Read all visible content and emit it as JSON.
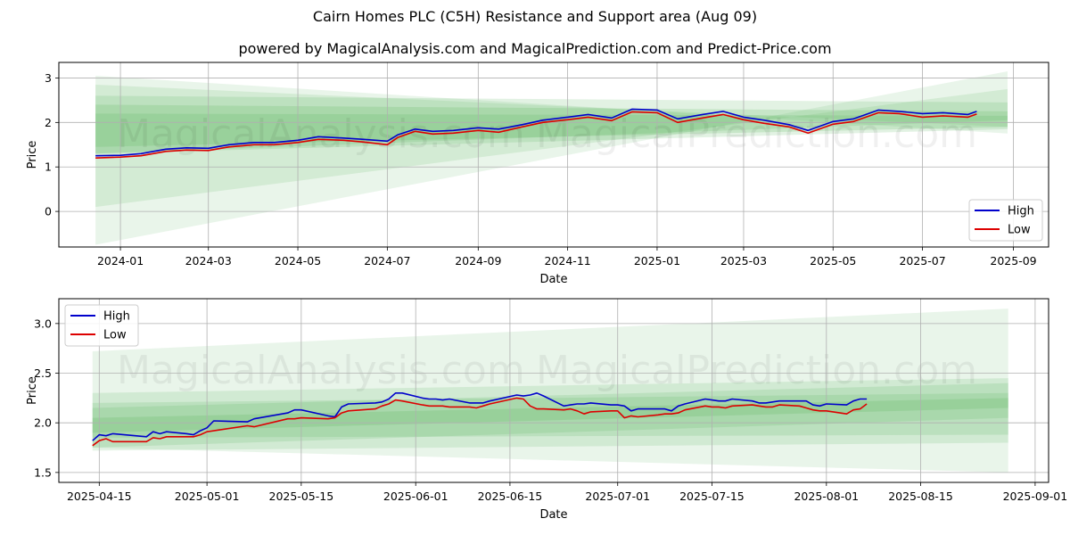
{
  "header": {
    "title": "Cairn Homes PLC (C5H) Resistance and Support area (Aug 09)",
    "subtitle": "powered by MagicalAnalysis.com and MagicalPrediction.com and Predict-Price.com"
  },
  "watermarks": [
    "MagicalAnalysis.com",
    "MagicalPrediction.com"
  ],
  "colors": {
    "high": "#0000cc",
    "low": "#dd0000",
    "band": "#4caf50",
    "grid": "#b0b0b0"
  },
  "chart_data": [
    {
      "type": "line",
      "xlabel": "Date",
      "ylabel": "Price",
      "xlim": [
        "2023-11-20",
        "2025-09-25"
      ],
      "ylim": [
        -0.8,
        3.35
      ],
      "grid": true,
      "legend_position": "lower-right",
      "xticks": [
        "2024-01",
        "2024-03",
        "2024-05",
        "2024-07",
        "2024-09",
        "2024-11",
        "2025-01",
        "2025-03",
        "2025-05",
        "2025-07",
        "2025-09"
      ],
      "yticks": [
        0,
        1,
        2,
        3
      ],
      "series": [
        {
          "name": "High",
          "color": "#0000cc",
          "x": [
            "2023-12-15",
            "2024-01-01",
            "2024-01-15",
            "2024-02-01",
            "2024-02-15",
            "2024-03-01",
            "2024-03-15",
            "2024-04-01",
            "2024-04-15",
            "2024-05-01",
            "2024-05-15",
            "2024-06-01",
            "2024-06-15",
            "2024-07-01",
            "2024-07-08",
            "2024-07-20",
            "2024-08-01",
            "2024-08-15",
            "2024-09-01",
            "2024-09-15",
            "2024-10-01",
            "2024-10-15",
            "2024-11-01",
            "2024-11-15",
            "2024-12-01",
            "2024-12-15",
            "2025-01-01",
            "2025-01-15",
            "2025-02-01",
            "2025-02-15",
            "2025-03-01",
            "2025-03-15",
            "2025-04-01",
            "2025-04-14",
            "2025-05-01",
            "2025-05-15",
            "2025-06-01",
            "2025-06-15",
            "2025-07-01",
            "2025-07-15",
            "2025-08-01",
            "2025-08-07"
          ],
          "y": [
            1.25,
            1.26,
            1.3,
            1.4,
            1.43,
            1.42,
            1.5,
            1.55,
            1.55,
            1.6,
            1.68,
            1.65,
            1.62,
            1.58,
            1.72,
            1.85,
            1.8,
            1.82,
            1.88,
            1.85,
            1.95,
            2.05,
            2.12,
            2.18,
            2.1,
            2.3,
            2.28,
            2.08,
            2.18,
            2.25,
            2.12,
            2.05,
            1.95,
            1.82,
            2.02,
            2.08,
            2.28,
            2.25,
            2.2,
            2.22,
            2.18,
            2.25
          ]
        },
        {
          "name": "Low",
          "color": "#dd0000",
          "x": [
            "2023-12-15",
            "2024-01-01",
            "2024-01-15",
            "2024-02-01",
            "2024-02-15",
            "2024-03-01",
            "2024-03-15",
            "2024-04-01",
            "2024-04-15",
            "2024-05-01",
            "2024-05-15",
            "2024-06-01",
            "2024-06-15",
            "2024-07-01",
            "2024-07-08",
            "2024-07-20",
            "2024-08-01",
            "2024-08-15",
            "2024-09-01",
            "2024-09-15",
            "2024-10-01",
            "2024-10-15",
            "2024-11-01",
            "2024-11-15",
            "2024-12-01",
            "2024-12-15",
            "2025-01-01",
            "2025-01-15",
            "2025-02-01",
            "2025-02-15",
            "2025-03-01",
            "2025-03-15",
            "2025-04-01",
            "2025-04-14",
            "2025-05-01",
            "2025-05-15",
            "2025-06-01",
            "2025-06-15",
            "2025-07-01",
            "2025-07-15",
            "2025-08-01",
            "2025-08-07"
          ],
          "y": [
            1.2,
            1.22,
            1.25,
            1.35,
            1.38,
            1.37,
            1.45,
            1.5,
            1.5,
            1.55,
            1.62,
            1.6,
            1.56,
            1.5,
            1.66,
            1.8,
            1.74,
            1.76,
            1.82,
            1.78,
            1.9,
            2.0,
            2.06,
            2.12,
            2.04,
            2.24,
            2.22,
            2.0,
            2.1,
            2.18,
            2.06,
            1.98,
            1.9,
            1.76,
            1.96,
            2.02,
            2.22,
            2.2,
            2.12,
            2.15,
            2.12,
            2.19
          ]
        }
      ]
    },
    {
      "type": "line",
      "xlabel": "Date",
      "ylabel": "Price",
      "xlim": [
        "2025-04-09",
        "2025-09-03"
      ],
      "ylim": [
        1.4,
        3.25
      ],
      "grid": true,
      "legend_position": "upper-left",
      "xticks": [
        "2025-04-15",
        "2025-05-01",
        "2025-05-15",
        "2025-06-01",
        "2025-06-15",
        "2025-07-01",
        "2025-07-15",
        "2025-08-01",
        "2025-08-15",
        "2025-09-01"
      ],
      "yticks": [
        1.5,
        2.0,
        2.5,
        3.0
      ],
      "series": [
        {
          "name": "High",
          "color": "#0000cc",
          "x": [
            "2025-04-14",
            "2025-04-15",
            "2025-04-16",
            "2025-04-17",
            "2025-04-22",
            "2025-04-23",
            "2025-04-24",
            "2025-04-25",
            "2025-04-28",
            "2025-04-29",
            "2025-04-30",
            "2025-05-01",
            "2025-05-02",
            "2025-05-07",
            "2025-05-08",
            "2025-05-13",
            "2025-05-14",
            "2025-05-15",
            "2025-05-19",
            "2025-05-20",
            "2025-05-21",
            "2025-05-22",
            "2025-05-26",
            "2025-05-27",
            "2025-05-28",
            "2025-05-29",
            "2025-05-30",
            "2025-06-02",
            "2025-06-03",
            "2025-06-04",
            "2025-06-05",
            "2025-06-06",
            "2025-06-09",
            "2025-06-10",
            "2025-06-11",
            "2025-06-12",
            "2025-06-16",
            "2025-06-17",
            "2025-06-18",
            "2025-06-19",
            "2025-06-20",
            "2025-06-23",
            "2025-06-24",
            "2025-06-25",
            "2025-06-26",
            "2025-06-27",
            "2025-06-30",
            "2025-07-01",
            "2025-07-02",
            "2025-07-03",
            "2025-07-04",
            "2025-07-07",
            "2025-07-08",
            "2025-07-09",
            "2025-07-10",
            "2025-07-11",
            "2025-07-14",
            "2025-07-15",
            "2025-07-16",
            "2025-07-17",
            "2025-07-18",
            "2025-07-21",
            "2025-07-22",
            "2025-07-23",
            "2025-07-24",
            "2025-07-25",
            "2025-07-28",
            "2025-07-29",
            "2025-07-30",
            "2025-07-31",
            "2025-08-01",
            "2025-08-04",
            "2025-08-05",
            "2025-08-06",
            "2025-08-07"
          ],
          "y": [
            1.82,
            1.88,
            1.87,
            1.89,
            1.86,
            1.91,
            1.89,
            1.91,
            1.89,
            1.88,
            1.92,
            1.95,
            2.02,
            2.01,
            2.04,
            2.1,
            2.13,
            2.13,
            2.07,
            2.06,
            2.16,
            2.19,
            2.2,
            2.21,
            2.24,
            2.3,
            2.3,
            2.25,
            2.24,
            2.24,
            2.23,
            2.24,
            2.2,
            2.2,
            2.2,
            2.22,
            2.28,
            2.27,
            2.28,
            2.3,
            2.27,
            2.17,
            2.18,
            2.19,
            2.19,
            2.2,
            2.18,
            2.18,
            2.17,
            2.12,
            2.14,
            2.14,
            2.14,
            2.12,
            2.17,
            2.19,
            2.24,
            2.23,
            2.22,
            2.22,
            2.24,
            2.22,
            2.2,
            2.2,
            2.21,
            2.22,
            2.22,
            2.22,
            2.18,
            2.17,
            2.19,
            2.18,
            2.22,
            2.24,
            2.24
          ]
        },
        {
          "name": "Low",
          "color": "#dd0000",
          "x": [
            "2025-04-14",
            "2025-04-15",
            "2025-04-16",
            "2025-04-17",
            "2025-04-22",
            "2025-04-23",
            "2025-04-24",
            "2025-04-25",
            "2025-04-28",
            "2025-04-29",
            "2025-04-30",
            "2025-05-01",
            "2025-05-02",
            "2025-05-07",
            "2025-05-08",
            "2025-05-13",
            "2025-05-14",
            "2025-05-15",
            "2025-05-19",
            "2025-05-20",
            "2025-05-21",
            "2025-05-22",
            "2025-05-26",
            "2025-05-27",
            "2025-05-28",
            "2025-05-29",
            "2025-05-30",
            "2025-06-02",
            "2025-06-03",
            "2025-06-04",
            "2025-06-05",
            "2025-06-06",
            "2025-06-09",
            "2025-06-10",
            "2025-06-11",
            "2025-06-12",
            "2025-06-16",
            "2025-06-17",
            "2025-06-18",
            "2025-06-19",
            "2025-06-20",
            "2025-06-23",
            "2025-06-24",
            "2025-06-25",
            "2025-06-26",
            "2025-06-27",
            "2025-06-30",
            "2025-07-01",
            "2025-07-02",
            "2025-07-03",
            "2025-07-04",
            "2025-07-07",
            "2025-07-08",
            "2025-07-09",
            "2025-07-10",
            "2025-07-11",
            "2025-07-14",
            "2025-07-15",
            "2025-07-16",
            "2025-07-17",
            "2025-07-18",
            "2025-07-21",
            "2025-07-22",
            "2025-07-23",
            "2025-07-24",
            "2025-07-25",
            "2025-07-28",
            "2025-07-29",
            "2025-07-30",
            "2025-07-31",
            "2025-08-01",
            "2025-08-04",
            "2025-08-05",
            "2025-08-06",
            "2025-08-07"
          ],
          "y": [
            1.77,
            1.82,
            1.84,
            1.81,
            1.81,
            1.85,
            1.84,
            1.86,
            1.86,
            1.86,
            1.88,
            1.91,
            1.92,
            1.97,
            1.96,
            2.04,
            2.04,
            2.05,
            2.04,
            2.05,
            2.1,
            2.12,
            2.14,
            2.17,
            2.19,
            2.23,
            2.22,
            2.18,
            2.17,
            2.17,
            2.17,
            2.16,
            2.16,
            2.15,
            2.17,
            2.19,
            2.25,
            2.24,
            2.17,
            2.14,
            2.14,
            2.13,
            2.14,
            2.12,
            2.09,
            2.11,
            2.12,
            2.12,
            2.05,
            2.07,
            2.06,
            2.08,
            2.09,
            2.09,
            2.1,
            2.13,
            2.17,
            2.16,
            2.16,
            2.15,
            2.17,
            2.18,
            2.17,
            2.16,
            2.16,
            2.18,
            2.17,
            2.15,
            2.13,
            2.12,
            2.12,
            2.09,
            2.13,
            2.14,
            2.19
          ]
        }
      ]
    }
  ]
}
